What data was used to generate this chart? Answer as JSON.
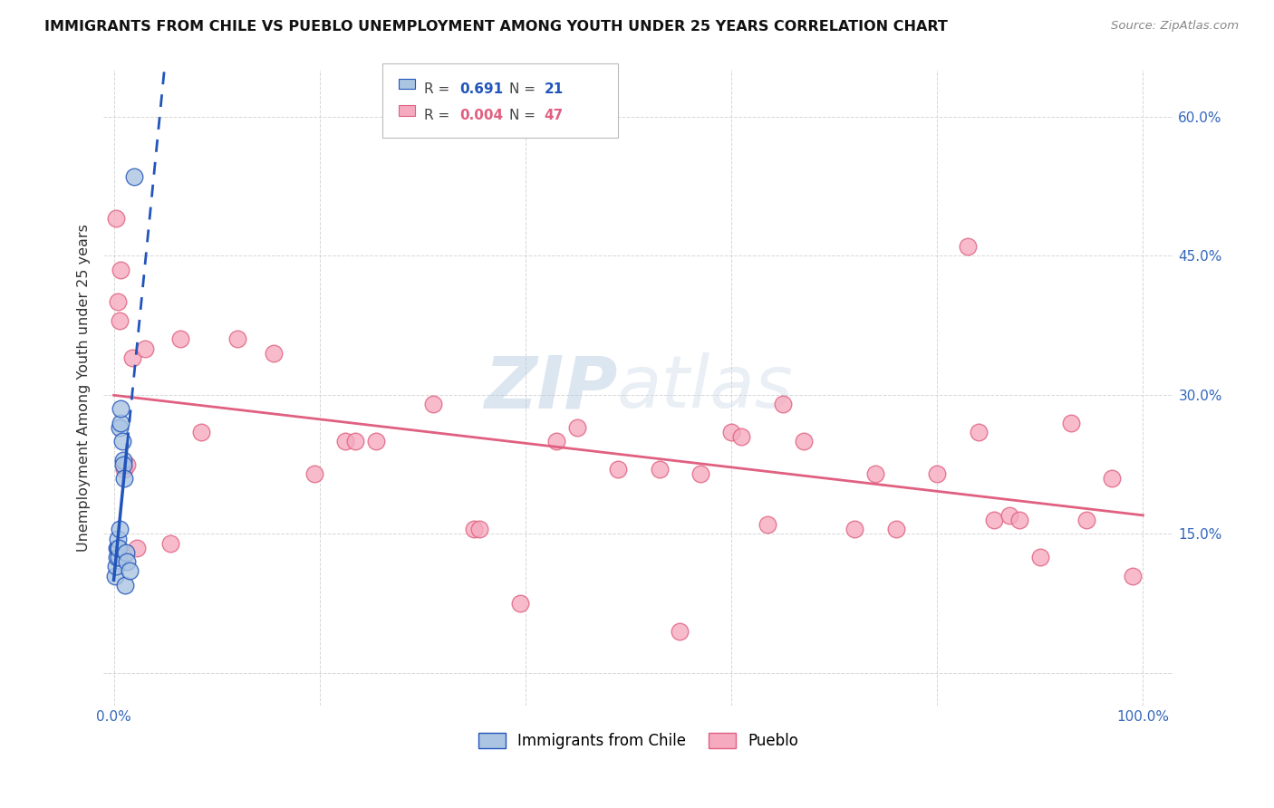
{
  "title": "IMMIGRANTS FROM CHILE VS PUEBLO UNEMPLOYMENT AMONG YOUTH UNDER 25 YEARS CORRELATION CHART",
  "source": "Source: ZipAtlas.com",
  "ylabel": "Unemployment Among Youth under 25 years",
  "legend_blue_r": "0.691",
  "legend_blue_n": "21",
  "legend_pink_r": "0.004",
  "legend_pink_n": "47",
  "legend_blue_label": "Immigrants from Chile",
  "legend_pink_label": "Pueblo",
  "blue_color": "#aac4e2",
  "blue_line_color": "#2255bb",
  "pink_color": "#f5aabf",
  "pink_line_color": "#e06080",
  "watermark_zip": "ZIP",
  "watermark_atlas": "atlas",
  "blue_points_x": [
    0.001,
    0.002,
    0.003,
    0.003,
    0.004,
    0.004,
    0.005,
    0.005,
    0.006,
    0.006,
    0.007,
    0.007,
    0.008,
    0.009,
    0.009,
    0.01,
    0.011,
    0.012,
    0.013,
    0.015,
    0.02
  ],
  "blue_points_y": [
    0.105,
    0.115,
    0.125,
    0.135,
    0.135,
    0.145,
    0.125,
    0.135,
    0.155,
    0.265,
    0.27,
    0.285,
    0.25,
    0.23,
    0.225,
    0.21,
    0.095,
    0.13,
    0.12,
    0.11,
    0.535
  ],
  "pink_points_x": [
    0.002,
    0.004,
    0.006,
    0.007,
    0.01,
    0.013,
    0.018,
    0.022,
    0.03,
    0.055,
    0.065,
    0.085,
    0.12,
    0.155,
    0.195,
    0.225,
    0.235,
    0.255,
    0.31,
    0.35,
    0.355,
    0.395,
    0.43,
    0.45,
    0.49,
    0.53,
    0.55,
    0.57,
    0.6,
    0.61,
    0.635,
    0.65,
    0.67,
    0.72,
    0.74,
    0.76,
    0.8,
    0.83,
    0.84,
    0.855,
    0.87,
    0.88,
    0.9,
    0.93,
    0.945,
    0.97,
    0.99
  ],
  "pink_points_y": [
    0.49,
    0.4,
    0.38,
    0.435,
    0.22,
    0.225,
    0.34,
    0.135,
    0.35,
    0.14,
    0.36,
    0.26,
    0.36,
    0.345,
    0.215,
    0.25,
    0.25,
    0.25,
    0.29,
    0.155,
    0.155,
    0.075,
    0.25,
    0.265,
    0.22,
    0.22,
    0.045,
    0.215,
    0.26,
    0.255,
    0.16,
    0.29,
    0.25,
    0.155,
    0.215,
    0.155,
    0.215,
    0.46,
    0.26,
    0.165,
    0.17,
    0.165,
    0.125,
    0.27,
    0.165,
    0.21,
    0.105
  ],
  "xlim": [
    -0.01,
    1.03
  ],
  "ylim": [
    -0.035,
    0.65
  ],
  "yticks": [
    0.0,
    0.15,
    0.3,
    0.45,
    0.6
  ],
  "ytick_labels": [
    "",
    "15.0%",
    "30.0%",
    "45.0%",
    "60.0%"
  ],
  "xticks": [
    0.0,
    0.2,
    0.4,
    0.6,
    0.8,
    1.0
  ],
  "xtick_labels": [
    "0.0%",
    "",
    "",
    "",
    "",
    "100.0%"
  ]
}
